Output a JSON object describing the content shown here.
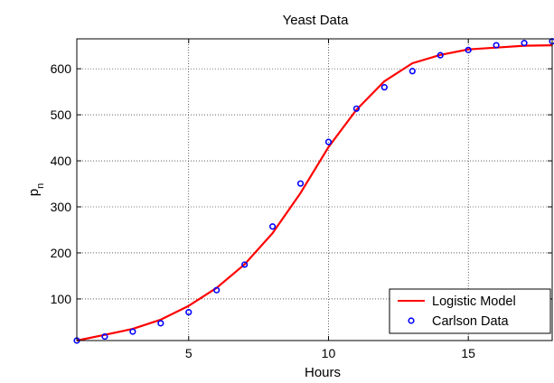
{
  "chart_data": {
    "type": "line",
    "title": "Yeast Data",
    "xlabel": "Hours",
    "ylabel": "p",
    "ylabel_subscript": "n",
    "xlim": [
      1,
      18
    ],
    "ylim": [
      9.6,
      665
    ],
    "xticks": [
      5,
      10,
      15
    ],
    "yticks": [
      100,
      200,
      300,
      400,
      500,
      600
    ],
    "grid": true,
    "legend_position": "bottom-right",
    "series": [
      {
        "name": "Logistic Model",
        "style": "line",
        "color": "#ff0000",
        "x": [
          1,
          2,
          3,
          4,
          5,
          6,
          7,
          8,
          9,
          10,
          11,
          12,
          13,
          14,
          15,
          16,
          17,
          18
        ],
        "y": [
          9.6,
          22,
          35,
          55,
          85,
          124,
          175,
          243,
          330,
          430,
          511,
          573,
          612,
          630,
          642,
          646,
          650,
          651
        ]
      },
      {
        "name": "Carlson Data",
        "style": "markers",
        "color": "#0000ff",
        "x": [
          1,
          2,
          3,
          4,
          5,
          6,
          7,
          8,
          9,
          10,
          11,
          12,
          13,
          14,
          15,
          16,
          17,
          18
        ],
        "y": [
          9.6,
          18.3,
          29,
          47.2,
          71.1,
          119.1,
          174.6,
          257.3,
          350.7,
          441,
          513.3,
          559.7,
          594.8,
          629.4,
          640.8,
          651.1,
          655.9,
          659.6
        ]
      }
    ]
  }
}
